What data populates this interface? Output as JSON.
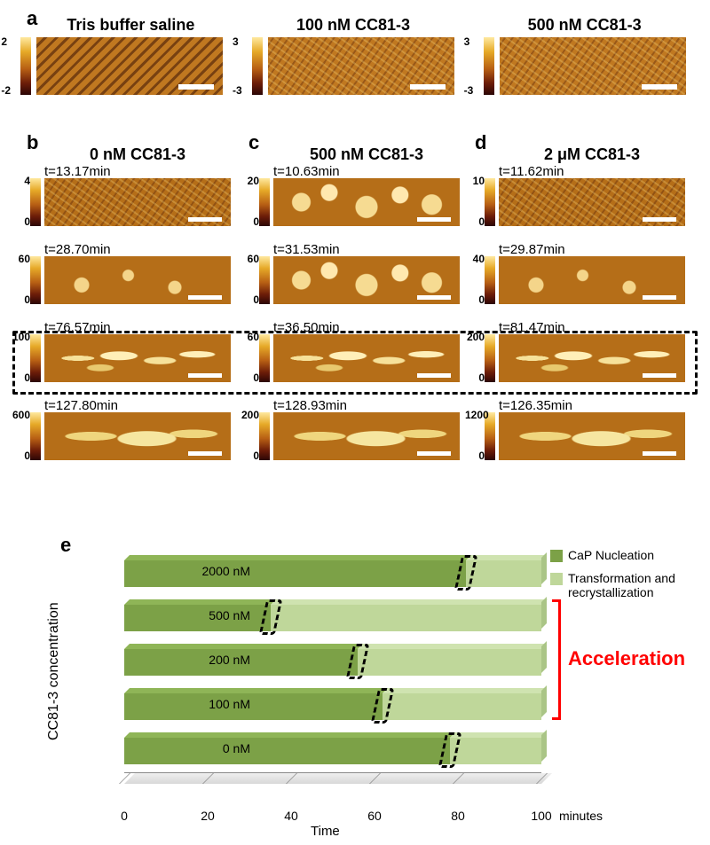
{
  "figure_letters": {
    "a": "a",
    "b": "b",
    "c": "c",
    "d": "d",
    "e": "e"
  },
  "panel_a": {
    "subpanels": [
      {
        "title": "Tris buffer saline",
        "scale_top": "2",
        "scale_bot": "-2"
      },
      {
        "title": "100 nM CC81-3",
        "scale_top": "3",
        "scale_bot": "-3"
      },
      {
        "title": "500 nM CC81-3",
        "scale_top": "3",
        "scale_bot": "-3"
      }
    ]
  },
  "columns": [
    {
      "key": "b",
      "title": "0 nM CC81-3",
      "rows": [
        {
          "t": "t=13.17min",
          "scale_top": "4",
          "scale_bot": "0",
          "tex": "collagen-bg tex-crosshatch"
        },
        {
          "t": "t=28.70min",
          "scale_top": "60",
          "scale_bot": "0",
          "tex": "flat-bg blobs-soft"
        },
        {
          "t": "t=76.57min",
          "scale_top": "100",
          "scale_bot": "0",
          "tex": "mid-bg blobs-heavy"
        },
        {
          "t": "t=127.80min",
          "scale_top": "600",
          "scale_bot": "0",
          "tex": "dark-bg blobs-massive"
        }
      ]
    },
    {
      "key": "c",
      "title": "500 nM CC81-3",
      "rows": [
        {
          "t": "t=10.63min",
          "scale_top": "20",
          "scale_bot": "0",
          "tex": "flat-bg blobs-mid"
        },
        {
          "t": "t=31.53min",
          "scale_top": "60",
          "scale_bot": "0",
          "tex": "flat-bg blobs-mid"
        },
        {
          "t": "t=36.50min",
          "scale_top": "60",
          "scale_bot": "0",
          "tex": "mid-bg blobs-heavy"
        },
        {
          "t": "t=128.93min",
          "scale_top": "200",
          "scale_bot": "0",
          "tex": "dark-bg blobs-massive"
        }
      ]
    },
    {
      "key": "d",
      "title": "2 μM CC81-3",
      "rows": [
        {
          "t": "t=11.62min",
          "scale_top": "10",
          "scale_bot": "0",
          "tex": "collagen-bg tex-crosshatch"
        },
        {
          "t": "t=29.87min",
          "scale_top": "40",
          "scale_bot": "0",
          "tex": "flat-bg blobs-soft"
        },
        {
          "t": "t=81.47min",
          "scale_top": "200",
          "scale_bot": "0",
          "tex": "mid-bg blobs-heavy"
        },
        {
          "t": "t=126.35min",
          "scale_top": "1200",
          "scale_bot": "0",
          "tex": "dark-bg blobs-massive"
        }
      ]
    }
  ],
  "panel_e": {
    "type": "stacked-bar-3d-horizontal",
    "ylabel": "CC81-3 concentration",
    "xlabel": "Time",
    "xunit": "minutes",
    "xlim": [
      0,
      100
    ],
    "xtick_step": 20,
    "xticks": [
      "0",
      "20",
      "40",
      "60",
      "80",
      "100"
    ],
    "colors": {
      "nucleation_front": "#7ca147",
      "nucleation_top": "#8fb557",
      "nucleation_side": "#6b8d3d",
      "transform_front": "#bfd79a",
      "transform_top": "#cfe3b0",
      "transform_side": "#aac586",
      "accel": "#ff0000"
    },
    "legend": [
      {
        "label": "CaP Nucleation",
        "color": "#7ca147"
      },
      {
        "label": "Transformation and recrystallization",
        "color": "#bfd79a"
      }
    ],
    "bars": [
      {
        "ylabel": "2000 nM",
        "break_min": 82,
        "accel": false
      },
      {
        "ylabel": "500 nM",
        "break_min": 35,
        "accel": true
      },
      {
        "ylabel": "200 nM",
        "break_min": 56,
        "accel": true
      },
      {
        "ylabel": "100 nM",
        "break_min": 62,
        "accel": true
      },
      {
        "ylabel": "0 nM",
        "break_min": 78,
        "accel": false
      }
    ],
    "accel_label": "Acceleration"
  }
}
